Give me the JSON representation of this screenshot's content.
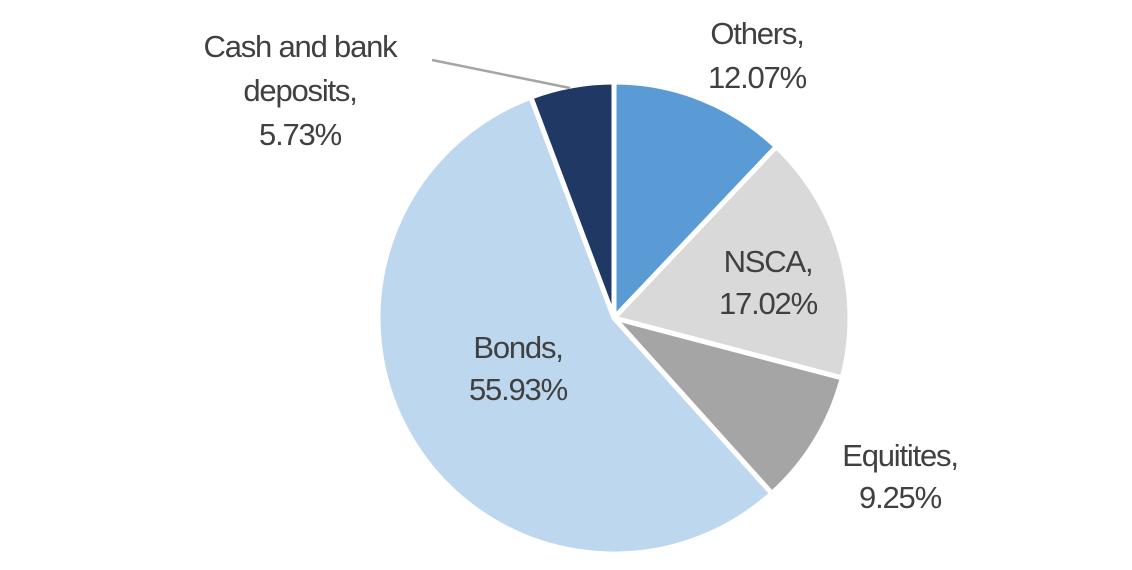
{
  "chart_data": {
    "type": "pie",
    "start": "top",
    "direction": "clockwise",
    "slices": [
      {
        "label": "Others,",
        "value_label": "12.07%",
        "value": 12.07,
        "color": "#5B9BD5"
      },
      {
        "label": "NSCA,",
        "value_label": "17.02%",
        "value": 17.02,
        "color": "#D9D9D9"
      },
      {
        "label": "Equitites,",
        "value_label": "9.25%",
        "value": 9.25,
        "color": "#A5A5A5"
      },
      {
        "label": "Bonds,",
        "value_label": "55.93%",
        "value": 55.93,
        "color": "#BDD7EE"
      },
      {
        "label": "Cash and bank deposits,",
        "label_lines": [
          "Cash and bank",
          "deposits,"
        ],
        "value_label": "5.73%",
        "value": 5.73,
        "color": "#203864"
      }
    ],
    "legend": "none"
  }
}
